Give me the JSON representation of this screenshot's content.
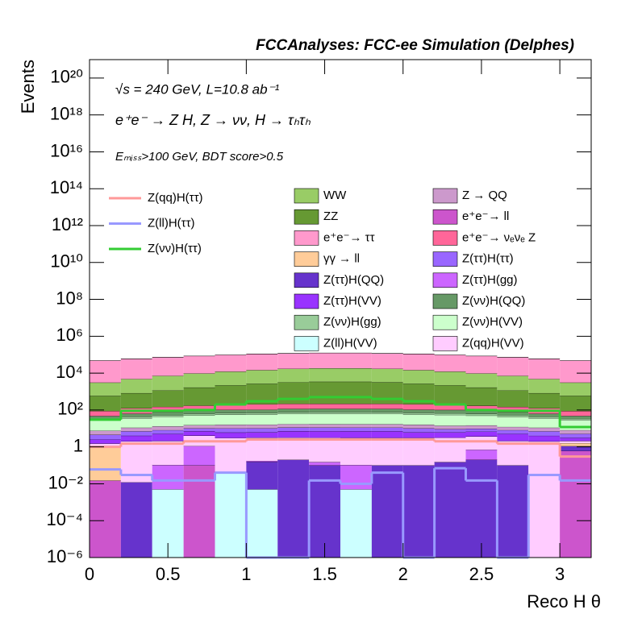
{
  "chart_data": {
    "type": "stacked_histogram",
    "title": "FCCAnalyses: FCC-ee Simulation (Delphes)",
    "annotations": [
      "√s = 240 GeV, L=10.8 ab⁻¹",
      "e⁺e⁻ → Z H, Z → νν, H → τₕτₕ",
      "Eₘᵢₛₛ>100 GeV, BDT score>0.5"
    ],
    "x_label": "Reco H θ",
    "y_label": "Events",
    "log_y": true,
    "xlim": [
      0,
      3.2
    ],
    "xticks": [
      0,
      0.5,
      1,
      1.5,
      2,
      2.5,
      3
    ],
    "ylim": [
      1e-06,
      1e+21
    ],
    "yticks": [
      {
        "value": 1e-06,
        "label": "10⁻⁶"
      },
      {
        "value": 0.0001,
        "label": "10⁻⁴"
      },
      {
        "value": 0.01,
        "label": "10⁻²"
      },
      1,
      {
        "value": 100,
        "label": "10²"
      },
      {
        "value": 10000.0,
        "label": "10⁴"
      },
      {
        "value": 1000000.0,
        "label": "10⁶"
      },
      {
        "value": 100000000.0,
        "label": "10⁸"
      },
      {
        "value": 10000000000.0,
        "label": "10¹⁰"
      },
      {
        "value": 1000000000000.0,
        "label": "10¹²"
      },
      {
        "value": 100000000000000.0,
        "label": "10¹⁴"
      },
      {
        "value": 1e+16,
        "label": "10¹⁶"
      },
      {
        "value": 1e+18,
        "label": "10¹⁸"
      },
      {
        "value": 1e+20,
        "label": "10²⁰"
      }
    ],
    "bins": [
      0,
      0.2,
      0.4,
      0.6,
      0.8,
      1,
      1.2,
      1.4,
      1.6,
      1.8,
      2,
      2.2,
      2.4,
      2.6,
      2.8,
      3,
      3.2
    ],
    "series": [
      {
        "name": "WW",
        "color": "#99cc66",
        "values": [
          2500,
          4000,
          6000,
          8000,
          10000,
          12000,
          14000,
          15000,
          15000,
          14000,
          12000,
          10000,
          8000,
          6000,
          4000,
          2500
        ]
      },
      {
        "name": "Z → QQ",
        "color": "#cc99cc",
        "values": [
          3,
          4,
          5,
          5,
          6,
          6,
          6,
          6,
          6,
          6,
          6,
          5,
          5,
          4,
          4,
          3
        ]
      },
      {
        "name": "ZZ",
        "color": "#669933",
        "values": [
          500,
          700,
          1000,
          1500,
          2000,
          2500,
          3000,
          3200,
          3200,
          3000,
          2500,
          2000,
          1500,
          1000,
          700,
          500
        ]
      },
      {
        "name": "e⁺e⁻→ ll",
        "color": "#cc55cc",
        "values": [
          0.015,
          0,
          0,
          0.1,
          0,
          0,
          0,
          0,
          0,
          0,
          0,
          0,
          0,
          0,
          0,
          0.6
        ]
      },
      {
        "name": "e⁺e⁻→ ττ",
        "color": "#ff99cc",
        "values": [
          45000,
          55000,
          65000,
          75000,
          85000,
          95000,
          100000,
          105000,
          105000,
          100000,
          95000,
          85000,
          75000,
          65000,
          55000,
          45000
        ]
      },
      {
        "name": "e⁺e⁻→ νₑνₑ Z",
        "color": "#ff6699",
        "values": [
          40,
          60,
          70,
          80,
          90,
          100,
          100,
          100,
          100,
          100,
          100,
          90,
          80,
          70,
          60,
          40
        ]
      },
      {
        "name": "γγ → ll",
        "color": "#ffcc99",
        "values": [
          1,
          0,
          0,
          0,
          0,
          0,
          0,
          0,
          0,
          0,
          0,
          0,
          0,
          0,
          0,
          0.5
        ]
      },
      {
        "name": "Z(ττ)H(ττ)",
        "color": "#9966ff",
        "values": [
          2,
          3,
          3,
          3,
          4,
          4,
          4,
          4,
          4,
          4,
          4,
          3,
          3,
          3,
          3,
          2
        ]
      },
      {
        "name": "Z(ττ)H(QQ)",
        "color": "#6633cc",
        "values": [
          0,
          0.012,
          0,
          0,
          0,
          0.15,
          0.2,
          0.1,
          0,
          0.1,
          0.1,
          0.15,
          0.2,
          0.1,
          0,
          0.5
        ]
      },
      {
        "name": "Z(ττ)H(gg)",
        "color": "#cc66ff",
        "values": [
          0,
          0,
          0.1,
          1,
          0,
          0.02,
          0,
          0.05,
          0.1,
          0,
          0,
          0,
          0.5,
          0,
          0,
          0
        ]
      },
      {
        "name": "Z(ττ)H(VV)",
        "color": "#9933ff",
        "values": [
          1,
          2,
          3,
          3,
          3,
          3,
          4,
          4,
          4,
          4,
          3,
          3,
          3,
          3,
          2,
          1
        ]
      },
      {
        "name": "Z(νν)H(QQ)",
        "color": "#669966",
        "values": [
          15,
          20,
          25,
          30,
          35,
          35,
          40,
          40,
          40,
          40,
          35,
          35,
          30,
          25,
          20,
          15
        ]
      },
      {
        "name": "Z(νν)H(gg)",
        "color": "#99cc99",
        "values": [
          5,
          8,
          10,
          12,
          12,
          14,
          14,
          15,
          15,
          14,
          14,
          12,
          12,
          10,
          8,
          5
        ]
      },
      {
        "name": "Z(νν)H(VV)",
        "color": "#ccffcc",
        "values": [
          20,
          25,
          30,
          35,
          40,
          40,
          45,
          45,
          45,
          45,
          40,
          40,
          35,
          30,
          25,
          20
        ]
      },
      {
        "name": "Z(ll)H(VV)",
        "color": "#ccffff",
        "values": [
          0,
          0,
          0.005,
          0,
          0.04,
          0.005,
          0,
          0,
          0.005,
          0,
          0,
          0,
          0,
          0,
          0,
          0
        ]
      },
      {
        "name": "Z(qq)H(VV)",
        "color": "#ffccff",
        "values": [
          0.5,
          2,
          2,
          3,
          3,
          3,
          3,
          3,
          3,
          3,
          3,
          3,
          3,
          2,
          2,
          0.5
        ]
      }
    ],
    "overlay_series": [
      {
        "name": "Z(qq)H(ττ)",
        "color": "#ff9999",
        "values": [
          1,
          1.5,
          1.5,
          2,
          2,
          2.5,
          2.5,
          2.5,
          2.5,
          2.5,
          2.5,
          2,
          2,
          1.5,
          1.5,
          0.3
        ]
      },
      {
        "name": "Z(ll)H(ττ)",
        "color": "#9999ff",
        "values": [
          0.06,
          0.03,
          0.015,
          0.015,
          0.04,
          0,
          0,
          0.015,
          0.01,
          0.04,
          0,
          0.07,
          0.015,
          0,
          0.03,
          0.015
        ]
      },
      {
        "name": "Z(νν)H(ττ)",
        "color": "#33cc33",
        "values": [
          30,
          90,
          90,
          100,
          200,
          300,
          400,
          500,
          500,
          400,
          300,
          200,
          100,
          90,
          90,
          12
        ]
      }
    ]
  }
}
